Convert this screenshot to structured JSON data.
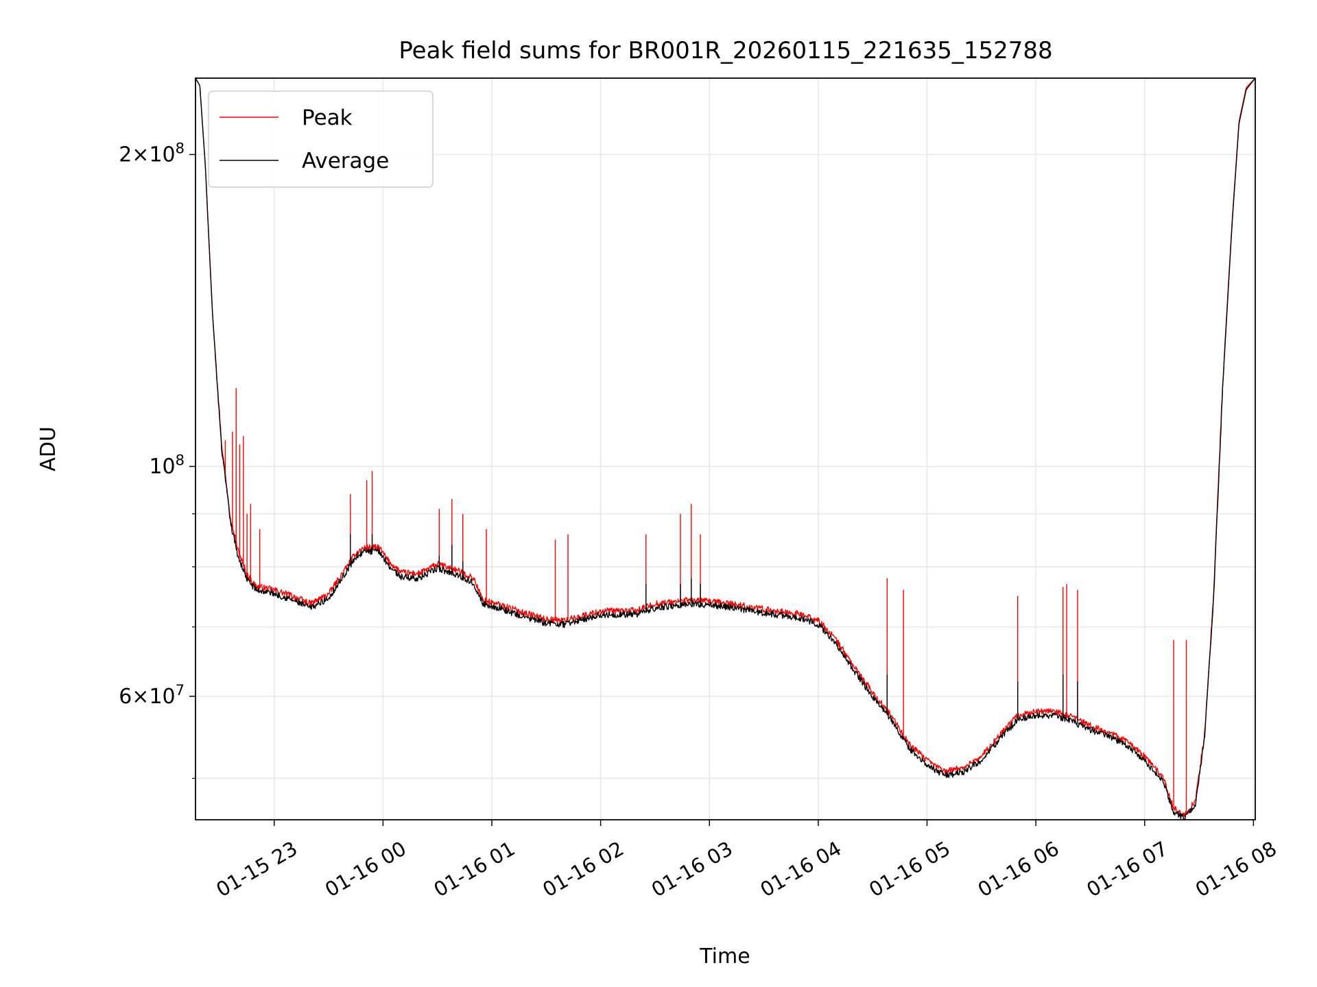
{
  "chart_data": {
    "type": "line",
    "title": "Peak field sums for BR001R_20260115_221635_152788",
    "xlabel": "Time",
    "ylabel": "ADU",
    "y_scale": "log",
    "xlim": [
      "2026-01-15T22:16:35",
      "2026-01-16T08:01:00"
    ],
    "ylim": [
      45600000,
      237000000
    ],
    "x_ticks": [
      {
        "t": "2026-01-15T23:00:00",
        "label": "01-15 23"
      },
      {
        "t": "2026-01-16T00:00:00",
        "label": "01-16 00"
      },
      {
        "t": "2026-01-16T01:00:00",
        "label": "01-16 01"
      },
      {
        "t": "2026-01-16T02:00:00",
        "label": "01-16 02"
      },
      {
        "t": "2026-01-16T03:00:00",
        "label": "01-16 03"
      },
      {
        "t": "2026-01-16T04:00:00",
        "label": "01-16 04"
      },
      {
        "t": "2026-01-16T05:00:00",
        "label": "01-16 05"
      },
      {
        "t": "2026-01-16T06:00:00",
        "label": "01-16 06"
      },
      {
        "t": "2026-01-16T07:00:00",
        "label": "01-16 07"
      },
      {
        "t": "2026-01-16T08:00:00",
        "label": "01-16 08"
      }
    ],
    "y_major_ticks": [
      {
        "v": 60000000,
        "mant": "6",
        "exp": "7"
      },
      {
        "v": 100000000,
        "mant": "",
        "exp": "8"
      },
      {
        "v": 200000000,
        "mant": "2",
        "exp": "8"
      }
    ],
    "y_minor_ticks": [
      50000000,
      70000000,
      80000000,
      90000000
    ],
    "grid": true,
    "legend": {
      "position": "top-left"
    },
    "series": [
      {
        "name": "Peak",
        "color": "#ff0000",
        "points": [
          [
            "2026-01-15T22:16:35",
            237000000
          ],
          [
            "2026-01-15T22:19:00",
            233000000
          ],
          [
            "2026-01-15T22:22:00",
            195000000
          ],
          [
            "2026-01-15T22:26:00",
            140000000
          ],
          [
            "2026-01-15T22:31:00",
            105000000
          ],
          [
            "2026-01-15T22:36:00",
            89000000
          ],
          [
            "2026-01-15T22:40:00",
            83000000
          ],
          [
            "2026-01-15T22:45:00",
            78600000
          ],
          [
            "2026-01-15T22:50:00",
            76600000
          ],
          [
            "2026-01-15T23:00:00",
            76000000
          ],
          [
            "2026-01-15T23:10:00",
            75000000
          ],
          [
            "2026-01-15T23:20:00",
            73700000
          ],
          [
            "2026-01-15T23:30:00",
            75300000
          ],
          [
            "2026-01-15T23:38:00",
            79000000
          ],
          [
            "2026-01-15T23:45:00",
            82500000
          ],
          [
            "2026-01-15T23:50:00",
            83500000
          ],
          [
            "2026-01-15T23:58:00",
            83500000
          ],
          [
            "2026-01-16T00:03:00",
            81000000
          ],
          [
            "2026-01-16T00:10:00",
            79000000
          ],
          [
            "2026-01-16T00:20:00",
            78800000
          ],
          [
            "2026-01-16T00:30:00",
            80500000
          ],
          [
            "2026-01-16T00:40:00",
            79500000
          ],
          [
            "2026-01-16T00:50:00",
            78000000
          ],
          [
            "2026-01-16T00:55:00",
            74300000
          ],
          [
            "2026-01-16T01:05:00",
            73500000
          ],
          [
            "2026-01-16T01:15:00",
            72500000
          ],
          [
            "2026-01-16T01:30:00",
            71200000
          ],
          [
            "2026-01-16T01:40:00",
            71000000
          ],
          [
            "2026-01-16T02:00:00",
            72500000
          ],
          [
            "2026-01-16T02:20:00",
            72600000
          ],
          [
            "2026-01-16T02:30:00",
            73700000
          ],
          [
            "2026-01-16T02:50:00",
            74300000
          ],
          [
            "2026-01-16T03:10:00",
            73800000
          ],
          [
            "2026-01-16T03:30:00",
            72800000
          ],
          [
            "2026-01-16T03:50:00",
            72000000
          ],
          [
            "2026-01-16T04:00:00",
            71000000
          ],
          [
            "2026-01-16T04:10:00",
            68000000
          ],
          [
            "2026-01-16T04:20:00",
            64000000
          ],
          [
            "2026-01-16T04:30:00",
            60500000
          ],
          [
            "2026-01-16T04:40:00",
            57500000
          ],
          [
            "2026-01-16T04:50:00",
            54000000
          ],
          [
            "2026-01-16T05:00:00",
            52000000
          ],
          [
            "2026-01-16T05:10:00",
            50800000
          ],
          [
            "2026-01-16T05:20:00",
            51200000
          ],
          [
            "2026-01-16T05:30:00",
            52500000
          ],
          [
            "2026-01-16T05:40:00",
            55000000
          ],
          [
            "2026-01-16T05:50:00",
            57500000
          ],
          [
            "2026-01-16T06:00:00",
            58000000
          ],
          [
            "2026-01-16T06:10:00",
            58000000
          ],
          [
            "2026-01-16T06:20:00",
            57300000
          ],
          [
            "2026-01-16T06:30:00",
            56200000
          ],
          [
            "2026-01-16T06:40:00",
            55400000
          ],
          [
            "2026-01-16T06:50:00",
            54300000
          ],
          [
            "2026-01-16T07:00:00",
            52500000
          ],
          [
            "2026-01-16T07:10:00",
            50200000
          ],
          [
            "2026-01-16T07:16:00",
            46800000
          ],
          [
            "2026-01-16T07:22:00",
            46000000
          ],
          [
            "2026-01-16T07:28:00",
            47600000
          ],
          [
            "2026-01-16T07:33:00",
            55000000
          ],
          [
            "2026-01-16T07:38:00",
            75000000
          ],
          [
            "2026-01-16T07:43:00",
            120000000
          ],
          [
            "2026-01-16T07:48:00",
            170000000
          ],
          [
            "2026-01-16T07:52:00",
            215000000
          ],
          [
            "2026-01-16T07:56:00",
            232000000
          ],
          [
            "2026-01-16T08:01:00",
            237000000
          ]
        ],
        "spikes": [
          [
            "2026-01-15T22:33:00",
            106000000
          ],
          [
            "2026-01-15T22:37:00",
            108000000
          ],
          [
            "2026-01-15T22:39:00",
            119000000
          ],
          [
            "2026-01-15T22:41:00",
            105000000
          ],
          [
            "2026-01-15T22:43:00",
            107000000
          ],
          [
            "2026-01-15T22:45:00",
            90000000
          ],
          [
            "2026-01-15T22:47:00",
            92000000
          ],
          [
            "2026-01-15T22:52:00",
            87000000
          ],
          [
            "2026-01-15T23:42:00",
            94000000
          ],
          [
            "2026-01-15T23:51:00",
            97000000
          ],
          [
            "2026-01-15T23:54:00",
            99000000
          ],
          [
            "2026-01-16T00:31:00",
            91000000
          ],
          [
            "2026-01-16T00:38:00",
            93000000
          ],
          [
            "2026-01-16T00:44:00",
            90000000
          ],
          [
            "2026-01-16T00:57:00",
            87000000
          ],
          [
            "2026-01-16T01:35:00",
            85000000
          ],
          [
            "2026-01-16T01:42:00",
            86000000
          ],
          [
            "2026-01-16T02:25:00",
            86000000
          ],
          [
            "2026-01-16T02:44:00",
            90000000
          ],
          [
            "2026-01-16T02:50:00",
            92000000
          ],
          [
            "2026-01-16T02:55:00",
            86000000
          ],
          [
            "2026-01-16T04:38:00",
            78000000
          ],
          [
            "2026-01-16T04:47:00",
            76000000
          ],
          [
            "2026-01-16T05:50:00",
            75000000
          ],
          [
            "2026-01-16T06:15:00",
            76500000
          ],
          [
            "2026-01-16T06:17:00",
            77000000
          ],
          [
            "2026-01-16T06:23:00",
            76000000
          ],
          [
            "2026-01-16T07:16:00",
            68000000
          ],
          [
            "2026-01-16T07:23:00",
            68000000
          ]
        ]
      },
      {
        "name": "Average",
        "color": "#000000",
        "points": [
          [
            "2026-01-15T22:16:35",
            237000000
          ],
          [
            "2026-01-15T22:19:00",
            233000000
          ],
          [
            "2026-01-15T22:22:00",
            195000000
          ],
          [
            "2026-01-15T22:26:00",
            140000000
          ],
          [
            "2026-01-15T22:31:00",
            104000000
          ],
          [
            "2026-01-15T22:36:00",
            88000000
          ],
          [
            "2026-01-15T22:40:00",
            82000000
          ],
          [
            "2026-01-15T22:45:00",
            77800000
          ],
          [
            "2026-01-15T22:50:00",
            76000000
          ],
          [
            "2026-01-15T23:00:00",
            75400000
          ],
          [
            "2026-01-15T23:10:00",
            74300000
          ],
          [
            "2026-01-15T23:20:00",
            73000000
          ],
          [
            "2026-01-15T23:30:00",
            74600000
          ],
          [
            "2026-01-15T23:38:00",
            78300000
          ],
          [
            "2026-01-15T23:45:00",
            81800000
          ],
          [
            "2026-01-15T23:50:00",
            82800000
          ],
          [
            "2026-01-15T23:58:00",
            82800000
          ],
          [
            "2026-01-16T00:03:00",
            80300000
          ],
          [
            "2026-01-16T00:10:00",
            78200000
          ],
          [
            "2026-01-16T00:20:00",
            78000000
          ],
          [
            "2026-01-16T00:30:00",
            79700000
          ],
          [
            "2026-01-16T00:40:00",
            78700000
          ],
          [
            "2026-01-16T00:50:00",
            77200000
          ],
          [
            "2026-01-16T00:55:00",
            73700000
          ],
          [
            "2026-01-16T01:05:00",
            72900000
          ],
          [
            "2026-01-16T01:15:00",
            71800000
          ],
          [
            "2026-01-16T01:30:00",
            70600000
          ],
          [
            "2026-01-16T01:40:00",
            70400000
          ],
          [
            "2026-01-16T02:00:00",
            71900000
          ],
          [
            "2026-01-16T02:20:00",
            72000000
          ],
          [
            "2026-01-16T02:30:00",
            73000000
          ],
          [
            "2026-01-16T02:50:00",
            73700000
          ],
          [
            "2026-01-16T03:10:00",
            73200000
          ],
          [
            "2026-01-16T03:30:00",
            72200000
          ],
          [
            "2026-01-16T03:50:00",
            71400000
          ],
          [
            "2026-01-16T04:00:00",
            70400000
          ],
          [
            "2026-01-16T04:10:00",
            67400000
          ],
          [
            "2026-01-16T04:20:00",
            63400000
          ],
          [
            "2026-01-16T04:30:00",
            60000000
          ],
          [
            "2026-01-16T04:40:00",
            57000000
          ],
          [
            "2026-01-16T04:50:00",
            53500000
          ],
          [
            "2026-01-16T05:00:00",
            51500000
          ],
          [
            "2026-01-16T05:10:00",
            50300000
          ],
          [
            "2026-01-16T05:20:00",
            50700000
          ],
          [
            "2026-01-16T05:30:00",
            52000000
          ],
          [
            "2026-01-16T05:40:00",
            54500000
          ],
          [
            "2026-01-16T05:50:00",
            57000000
          ],
          [
            "2026-01-16T06:00:00",
            57500000
          ],
          [
            "2026-01-16T06:10:00",
            57500000
          ],
          [
            "2026-01-16T06:20:00",
            56800000
          ],
          [
            "2026-01-16T06:30:00",
            55700000
          ],
          [
            "2026-01-16T06:40:00",
            54900000
          ],
          [
            "2026-01-16T06:50:00",
            53800000
          ],
          [
            "2026-01-16T07:00:00",
            52000000
          ],
          [
            "2026-01-16T07:10:00",
            49700000
          ],
          [
            "2026-01-16T07:16:00",
            46400000
          ],
          [
            "2026-01-16T07:22:00",
            45700000
          ],
          [
            "2026-01-16T07:28:00",
            47300000
          ],
          [
            "2026-01-16T07:33:00",
            54600000
          ],
          [
            "2026-01-16T07:38:00",
            74500000
          ],
          [
            "2026-01-16T07:43:00",
            119000000
          ],
          [
            "2026-01-16T07:48:00",
            169000000
          ],
          [
            "2026-01-16T07:52:00",
            214000000
          ],
          [
            "2026-01-16T07:56:00",
            231000000
          ],
          [
            "2026-01-16T08:01:00",
            237000000
          ]
        ],
        "spikes": [
          [
            "2026-01-15T23:42:00",
            86000000
          ],
          [
            "2026-01-15T23:54:00",
            86000000
          ],
          [
            "2026-01-16T00:31:00",
            82000000
          ],
          [
            "2026-01-16T00:38:00",
            84000000
          ],
          [
            "2026-01-16T00:44:00",
            81000000
          ],
          [
            "2026-01-16T02:25:00",
            77000000
          ],
          [
            "2026-01-16T02:44:00",
            77000000
          ],
          [
            "2026-01-16T02:50:00",
            78000000
          ],
          [
            "2026-01-16T02:55:00",
            77000000
          ],
          [
            "2026-01-16T04:38:00",
            63000000
          ],
          [
            "2026-01-16T05:50:00",
            62000000
          ],
          [
            "2026-01-16T06:15:00",
            63000000
          ],
          [
            "2026-01-16T06:23:00",
            62000000
          ]
        ]
      }
    ]
  }
}
